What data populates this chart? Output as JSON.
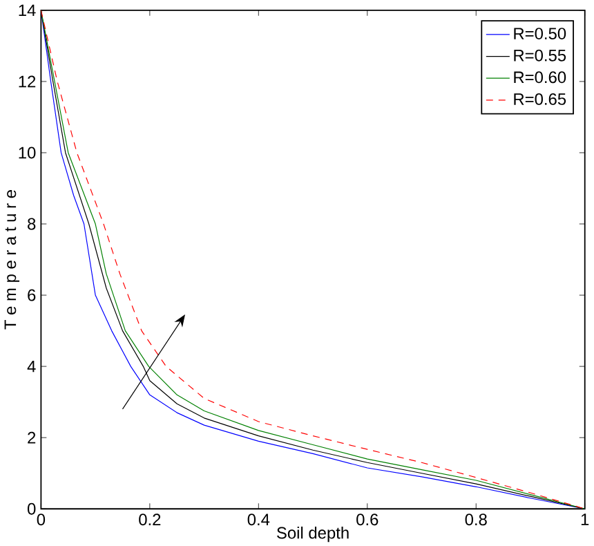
{
  "chart_data": {
    "type": "line",
    "xlabel": "Soil depth",
    "ylabel": "T e m p e r a t u r e",
    "x": [
      0,
      0.018,
      0.037,
      0.06,
      0.079,
      0.1,
      0.13,
      0.165,
      0.2,
      0.25,
      0.3,
      0.4,
      0.5,
      0.6,
      0.7,
      0.8,
      0.9,
      1
    ],
    "series": [
      {
        "name": "R=0.50",
        "color": "#0000ff",
        "line_style": "solid",
        "values": [
          14,
          12,
          10,
          8.8,
          8,
          6,
          5,
          4,
          3.2,
          2.7,
          2.35,
          1.9,
          1.55,
          1.15,
          0.9,
          0.62,
          0.3,
          0
        ]
      },
      {
        "name": "R=0.55",
        "color": "#000000",
        "line_style": "solid",
        "x": [
          0,
          0.022,
          0.045,
          0.088,
          0.12,
          0.15,
          0.188,
          0.2,
          0.25,
          0.3,
          0.4,
          0.5,
          0.6,
          0.7,
          0.8,
          0.9,
          1
        ],
        "values": [
          14,
          12,
          10,
          8,
          6.2,
          5,
          4,
          3.6,
          2.95,
          2.55,
          2.05,
          1.65,
          1.3,
          1.0,
          0.7,
          0.35,
          0
        ]
      },
      {
        "name": "R=0.60",
        "color": "#008000",
        "line_style": "solid",
        "x": [
          0,
          0.025,
          0.05,
          0.1,
          0.12,
          0.155,
          0.198,
          0.25,
          0.3,
          0.4,
          0.5,
          0.6,
          0.7,
          0.8,
          0.9,
          1
        ],
        "values": [
          14,
          12,
          10,
          8,
          6.6,
          5,
          4,
          3.2,
          2.75,
          2.2,
          1.8,
          1.4,
          1.1,
          0.8,
          0.4,
          0
        ]
      },
      {
        "name": "R=0.65",
        "color": "#ff0000",
        "line_style": "dashed",
        "x": [
          0,
          0.03,
          0.066,
          0.115,
          0.145,
          0.185,
          0.23,
          0.3,
          0.4,
          0.5,
          0.6,
          0.7,
          0.8,
          0.9,
          1
        ],
        "values": [
          14,
          12,
          10,
          8,
          6.6,
          5,
          4,
          3.1,
          2.45,
          2.05,
          1.67,
          1.3,
          0.88,
          0.45,
          0
        ]
      }
    ],
    "xlim": [
      0,
      1
    ],
    "ylim": [
      0,
      14
    ],
    "xticks": [
      0,
      0.2,
      0.4,
      0.6,
      0.8,
      1
    ],
    "yticks": [
      0,
      2,
      4,
      6,
      8,
      10,
      12,
      14
    ],
    "grid": false,
    "legend": "top right",
    "marker": "none"
  }
}
